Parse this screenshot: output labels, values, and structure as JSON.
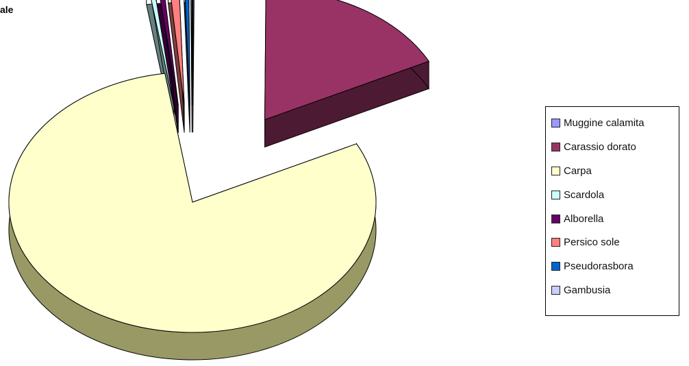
{
  "title_fragment": "ale",
  "chart_data": {
    "type": "pie",
    "style": "3d-exploded",
    "legend_position": "right",
    "start_angle_deg": 90,
    "direction": "clockwise",
    "slices": [
      {
        "name": "Muggine calamita",
        "value": 0.1,
        "color": "#9999ff",
        "exploded": true
      },
      {
        "name": "Carassio dorato",
        "value": 17.5,
        "color": "#993366",
        "exploded": true
      },
      {
        "name": "Carpa",
        "value": 80.0,
        "color": "#ffffcc",
        "exploded": false
      },
      {
        "name": "Scardola",
        "value": 0.5,
        "color": "#ccffff",
        "exploded": true
      },
      {
        "name": "Alborella",
        "value": 0.5,
        "color": "#660066",
        "exploded": true
      },
      {
        "name": "Persico sole",
        "value": 0.9,
        "color": "#ff8080",
        "exploded": true
      },
      {
        "name": "Pseudorasbora",
        "value": 0.4,
        "color": "#0066cc",
        "exploded": true
      },
      {
        "name": "Gambusia",
        "value": 0.1,
        "color": "#ccccff",
        "exploded": true
      }
    ]
  }
}
